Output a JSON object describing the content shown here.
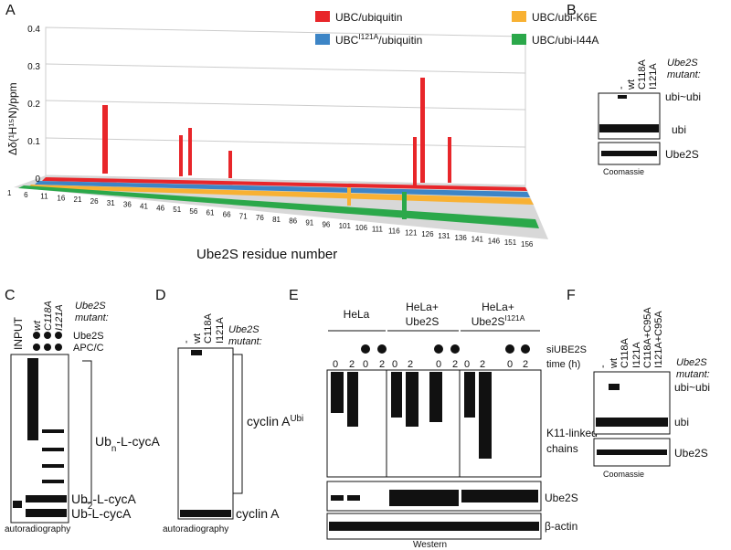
{
  "panels": {
    "a": {
      "label": "A",
      "y_axis_label": "Δδ(¹H¹⁵N)/ppm",
      "y_ticks": [
        "0",
        "0.1",
        "0.2",
        "0.3",
        "0.4"
      ],
      "x_ticks": [
        1,
        6,
        11,
        16,
        21,
        26,
        31,
        36,
        41,
        46,
        51,
        56,
        61,
        66,
        71,
        76,
        81,
        86,
        91,
        96,
        101,
        106,
        111,
        116,
        121,
        126,
        131,
        136,
        141,
        146,
        151,
        156
      ],
      "x_axis_label": "Ube2S residue number",
      "legend": [
        {
          "text": "UBC/ubiquitin",
          "color": "#e8262a"
        },
        {
          "text": "UBC/ubi-K6E",
          "color": "#f8b133"
        },
        {
          "main": "UBC",
          "sup": "I121A",
          "rest": "/ubiquitin",
          "color": "#3d85c6"
        },
        {
          "text": "UBC/ubi-I44A",
          "color": "#2ba84a"
        }
      ]
    },
    "b": {
      "label": "B",
      "lanes": [
        "-",
        "wt",
        "C118A",
        "I121A"
      ],
      "mutant_label": [
        "Ube2S",
        "mutant:"
      ],
      "bands": [
        "ubi~ubi",
        "ubi",
        "Ube2S"
      ],
      "caption": "Coomassie"
    },
    "c": {
      "label": "C",
      "input": "INPUT",
      "lanes": [
        "wt",
        "C118A",
        "I121A"
      ],
      "mutant_label": [
        "Ube2S",
        "mutant:"
      ],
      "rows": [
        "Ube2S",
        "APC/C"
      ],
      "bands": [
        {
          "main": "Ub",
          "sub": "n",
          "rest": "-L-cycA"
        },
        {
          "main": "Ub",
          "sub": "2",
          "rest": "-L-cycA"
        },
        {
          "main": "Ub-L-cycA"
        }
      ],
      "caption": "autoradiography"
    },
    "d": {
      "label": "D",
      "lanes": [
        "-",
        "wt",
        "C118A",
        "I121A"
      ],
      "mutant_label": [
        "Ube2S",
        "mutant:"
      ],
      "bands": [
        {
          "main": "cyclin A",
          "sup": "Ubi"
        },
        {
          "main": "cyclin A"
        }
      ],
      "caption": "autoradiography"
    },
    "e": {
      "label": "E",
      "groups": [
        {
          "lines": [
            "HeLa"
          ]
        },
        {
          "lines": [
            "HeLa+",
            "Ube2S"
          ]
        },
        {
          "lines": [
            "HeLa+",
            "Ube2S"
          ],
          "sup": "I121A"
        }
      ],
      "rows": [
        "siUBE2S",
        "time (h)"
      ],
      "times": [
        "0",
        "2",
        "0",
        "2",
        "0",
        "2",
        "0",
        "2",
        "0",
        "2",
        "0",
        "2"
      ],
      "bands": [
        "K11-linked",
        "chains",
        "Ube2S",
        "β-actin"
      ],
      "caption": "Western"
    },
    "f": {
      "label": "F",
      "lanes": [
        "-",
        "wt",
        "C118A",
        "I121A",
        "C118A+C95A",
        "I121A+C95A"
      ],
      "mutant_label": [
        "Ube2S",
        "mutant:"
      ],
      "bands": [
        "ubi~ubi",
        "ubi",
        "Ube2S"
      ],
      "caption": "Coomassie"
    }
  }
}
